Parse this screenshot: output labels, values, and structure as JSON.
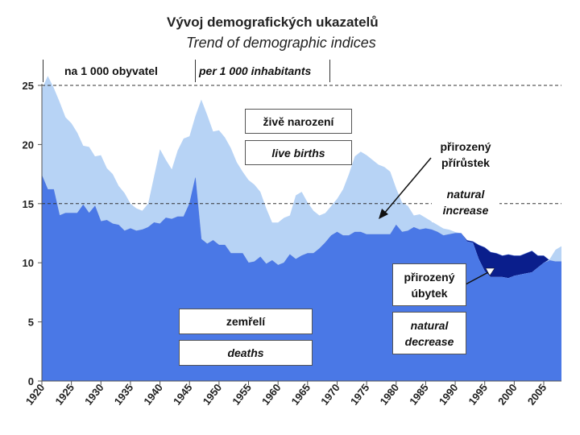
{
  "title": {
    "cz": "Vývoj demografických ukazatelů",
    "en": "Trend of demographic indices"
  },
  "units": {
    "cz": "na 1 000 obyvatel",
    "en": "per 1 000 inhabitants"
  },
  "labels": {
    "births_cz": "živě narození",
    "births_en": "live births",
    "increase_cz_1": "přirozený",
    "increase_cz_2": "přírůstek",
    "increase_en_1": "natural",
    "increase_en_2": "increase",
    "decrease_cz_1": "přirozený",
    "decrease_cz_2": "úbytek",
    "decrease_en_1": "natural",
    "decrease_en_2": "decrease",
    "deaths_cz": "zemřelí",
    "deaths_en": "deaths"
  },
  "colors": {
    "births_fill": "#b7d3f5",
    "deaths_fill": "#4a78e6",
    "decrease_fill": "#0a1e8c"
  },
  "chart_data": {
    "type": "area",
    "xlim": [
      1920,
      2008
    ],
    "ylim": [
      0,
      25
    ],
    "yticks": [
      0,
      5,
      10,
      15,
      20,
      25
    ],
    "xticks": [
      1920,
      1925,
      1930,
      1935,
      1940,
      1945,
      1950,
      1955,
      1960,
      1965,
      1970,
      1975,
      1980,
      1985,
      1990,
      1995,
      2000,
      2005
    ],
    "dashed_lines": [
      25,
      15
    ],
    "x": [
      1920,
      1921,
      1922,
      1923,
      1924,
      1925,
      1926,
      1927,
      1928,
      1929,
      1930,
      1931,
      1932,
      1933,
      1934,
      1935,
      1936,
      1937,
      1938,
      1939,
      1940,
      1941,
      1942,
      1943,
      1944,
      1945,
      1946,
      1947,
      1948,
      1949,
      1950,
      1951,
      1952,
      1953,
      1954,
      1955,
      1956,
      1957,
      1958,
      1959,
      1960,
      1961,
      1962,
      1963,
      1964,
      1965,
      1966,
      1967,
      1968,
      1969,
      1970,
      1971,
      1972,
      1973,
      1974,
      1975,
      1976,
      1977,
      1978,
      1979,
      1980,
      1981,
      1982,
      1983,
      1984,
      1985,
      1986,
      1987,
      1988,
      1989,
      1990,
      1991,
      1992,
      1993,
      1994,
      1995,
      1996,
      1997,
      1998,
      1999,
      2000,
      2001,
      2002,
      2003,
      2004,
      2005,
      2006,
      2007,
      2008
    ],
    "series": [
      {
        "name": "live births",
        "values": [
          24.7,
          25.8,
          24.8,
          23.6,
          22.3,
          21.8,
          21.0,
          19.9,
          19.8,
          19.0,
          19.1,
          18.0,
          17.5,
          16.5,
          15.9,
          15.0,
          14.6,
          14.4,
          15.0,
          17.3,
          19.6,
          18.7,
          17.9,
          19.5,
          20.5,
          20.7,
          22.4,
          23.8,
          22.5,
          21.1,
          21.2,
          20.6,
          19.7,
          18.5,
          17.7,
          17.0,
          16.6,
          16.0,
          14.6,
          13.4,
          13.4,
          13.8,
          14.0,
          15.7,
          16.0,
          15.1,
          14.4,
          14.0,
          14.2,
          14.8,
          15.4,
          16.2,
          17.5,
          19.0,
          19.4,
          19.1,
          18.7,
          18.3,
          18.1,
          17.7,
          16.3,
          15.1,
          14.8,
          14.0,
          14.1,
          13.8,
          13.5,
          13.2,
          12.9,
          12.8,
          12.6,
          12.5,
          11.8,
          11.7,
          10.3,
          9.3,
          8.8,
          8.8,
          8.8,
          8.7,
          8.9,
          9.0,
          9.1,
          9.2,
          9.6,
          10.0,
          10.3,
          11.1,
          11.4
        ]
      },
      {
        "name": "deaths",
        "values": [
          17.4,
          16.2,
          16.2,
          14.0,
          14.2,
          14.2,
          14.2,
          14.9,
          14.2,
          14.8,
          13.5,
          13.6,
          13.3,
          13.2,
          12.7,
          12.9,
          12.7,
          12.8,
          13.0,
          13.4,
          13.3,
          13.8,
          13.7,
          13.9,
          13.9,
          15.0,
          17.2,
          12.0,
          11.6,
          11.9,
          11.5,
          11.5,
          10.8,
          10.8,
          10.8,
          10.0,
          10.1,
          10.5,
          9.9,
          10.2,
          9.8,
          10.0,
          10.7,
          10.3,
          10.6,
          10.8,
          10.8,
          11.2,
          11.7,
          12.3,
          12.6,
          12.3,
          12.3,
          12.6,
          12.6,
          12.4,
          12.4,
          12.4,
          12.4,
          12.4,
          13.2,
          12.6,
          12.7,
          13.0,
          12.8,
          12.9,
          12.8,
          12.6,
          12.3,
          12.4,
          12.5,
          12.5,
          11.9,
          11.8,
          11.5,
          11.3,
          10.9,
          10.8,
          10.6,
          10.7,
          10.6,
          10.6,
          10.8,
          11.0,
          10.6,
          10.6,
          10.2,
          10.1,
          10.1
        ]
      }
    ]
  }
}
